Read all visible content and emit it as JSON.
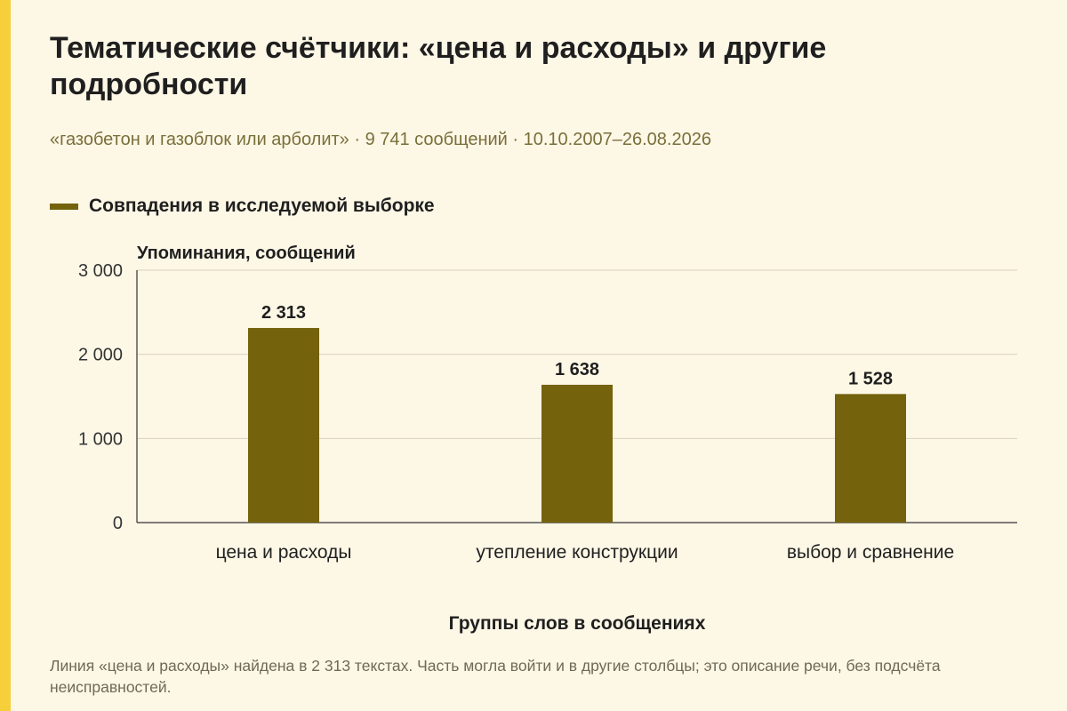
{
  "page": {
    "title": "Тематические счётчики: «цена и расходы» и другие подробности",
    "subtitle": "«газобетон и газоблок или арболит» · 9 741 сообщений · 10.10.2007–26.08.2026",
    "footnote": "Линия «цена и расходы» найдена в 2 313 текстах. Часть могла войти и в другие столбцы; это описание речи, без подсчёта неисправностей."
  },
  "colors": {
    "bar": "#74620d",
    "accent": "#f6cf3a",
    "background": "#fdf7e6"
  },
  "chart_data": {
    "type": "bar",
    "categories": [
      "цена и расходы",
      "утепление конструкции",
      "выбор и сравнение"
    ],
    "series": [
      {
        "name": "Совпадения в исследуемой выборке",
        "values": [
          2313,
          1638,
          1528
        ],
        "value_labels": [
          "2 313",
          "1 638",
          "1 528"
        ]
      }
    ],
    "ylabel": "Упоминания, сообщений",
    "xlabel": "Группы слов в сообщениях",
    "ylim": [
      0,
      3000
    ],
    "yticks": [
      0,
      1000,
      2000,
      3000
    ],
    "ytick_labels": [
      "0",
      "1 000",
      "2 000",
      "3 000"
    ],
    "grid": true,
    "legend": "top-left"
  }
}
